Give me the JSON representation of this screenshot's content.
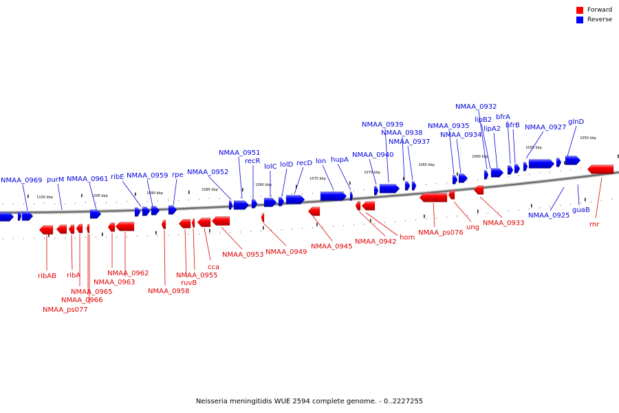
{
  "legend": [
    {
      "label": "Forward",
      "color": "#ff0000"
    },
    {
      "label": "Reverse",
      "color": "#0000ff"
    }
  ],
  "caption": "Neisseria meningitidis WUE 2594 complete genome. - 0..2227255",
  "scale_labels": [
    "1100 kbp",
    "1095 kbp",
    "1090 kbp",
    "1085 kbp",
    "1080 kbp",
    "1075 kbp",
    "1070 kbp",
    "1065 kbp",
    "1060 kbp",
    "1055 kbp",
    "1050 kbp"
  ],
  "genes_reverse": [
    "NMAA_0969",
    "purM",
    "NMAA_0961",
    "ribE",
    "NMAA_0959",
    "rpe",
    "NMAA_0952",
    "NMAA_0951",
    "recR",
    "lolC",
    "lolD",
    "recD",
    "lon",
    "hupA",
    "NMAA_0940",
    "NMAA_0939",
    "NMAA_0938",
    "NMAA_0937",
    "NMAA_0935",
    "NMAA_0934",
    "NMAA_0932",
    "lipB2",
    "lipA2",
    "bfrA",
    "bfrB",
    "NMAA_0927",
    "glnD",
    "NMAA_0925",
    "guaB"
  ],
  "genes_forward": [
    "ribAB",
    "ribA",
    "NMAA_0965",
    "NMAA_0966",
    "NMAA_ps077",
    "NMAA_0962",
    "NMAA_0963",
    "NMAA_0958",
    "ruvB",
    "NMAA_0955",
    "cca",
    "NMAA_0953",
    "NMAA_0949",
    "NMAA_0945",
    "NMAA_0942",
    "hom",
    "NMAA_ps076",
    "ung",
    "NMAA_0933",
    "rnr"
  ]
}
